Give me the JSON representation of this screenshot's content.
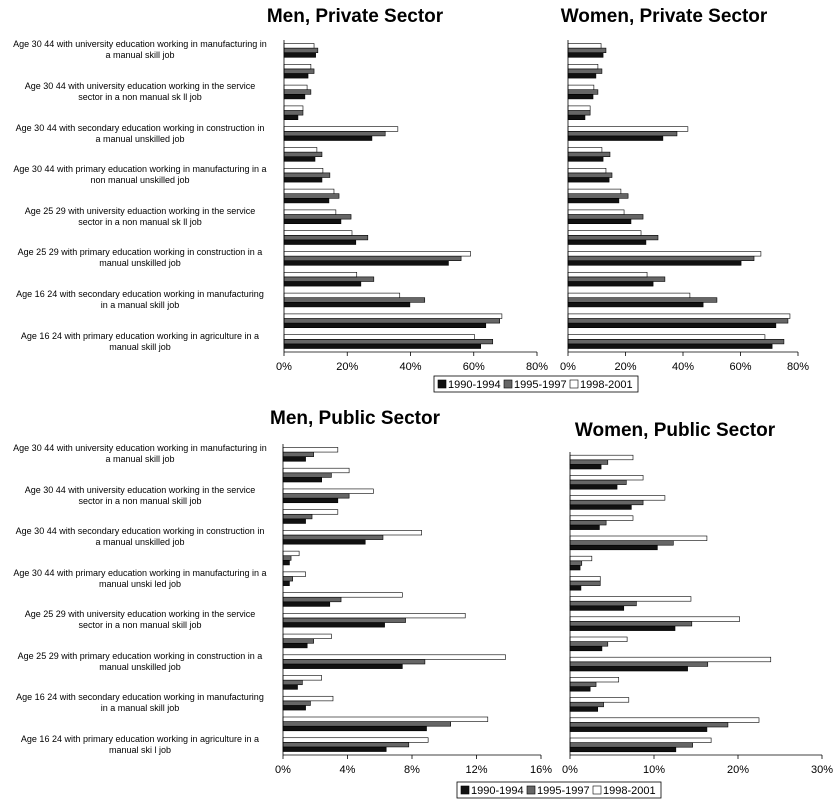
{
  "chart_data": [
    {
      "type": "bar",
      "title": "Men, Private Sector",
      "categories": [
        "Age 30 44 with university education working in manufacturing in\na manual skill job",
        null,
        "Age 30 44 with university education working in the service\nsector in a non manual sk ll job",
        null,
        "Age 30 44 with secondary education working in construction in\na manual unskilled job",
        null,
        "Age 30 44 with primary education working in manufacturing in a\nnon manual unskilled job",
        null,
        "Age 25 29 with university eduaction working in the service\nsector in a non manual sk ll job",
        null,
        "Age 25 29  with primary education working in construction in a\nmanual unskilled job",
        null,
        "Age 16 24 with secondary education working in manufacturing\nin a manual skill job",
        null,
        "Age 16 24 with primary education working in agriculture in a\nmanual skill job"
      ],
      "series": [
        {
          "name": "1990-1994",
          "color": "#111111",
          "values": [
            10,
            7.6,
            6.6,
            4.4,
            27.8,
            9.8,
            12,
            14.2,
            18,
            22.7,
            52,
            24.3,
            39.8,
            63.8,
            62.2
          ]
        },
        {
          "name": "1995-1997",
          "color": "#666666",
          "values": [
            10.7,
            9.5,
            8.5,
            6,
            32,
            12,
            14.5,
            17.4,
            21.2,
            26.5,
            56,
            28.4,
            44.5,
            68.2,
            66
          ]
        },
        {
          "name": "1998-2001",
          "color": "#ffffff",
          "values": [
            9.5,
            8.5,
            7.3,
            6,
            36,
            10.4,
            12.3,
            15.8,
            16.4,
            21.5,
            59,
            23,
            36.6,
            68.9,
            60.3
          ]
        }
      ],
      "xlim": [
        0,
        80
      ],
      "xticks": [
        {
          "value": 0,
          "label": "0%"
        },
        {
          "value": 20,
          "label": "20%"
        },
        {
          "value": 40,
          "label": "40%"
        },
        {
          "value": 60,
          "label": "60%"
        },
        {
          "value": 80,
          "label": "80%"
        }
      ],
      "legend": "bottom"
    },
    {
      "type": "bar",
      "title": "Women, Private Sector",
      "categories": [
        null,
        null,
        null,
        null,
        null,
        null,
        null,
        null,
        null,
        null,
        null,
        null,
        null,
        null,
        null
      ],
      "series": [
        {
          "name": "1990-1994",
          "color": "#111111",
          "values": [
            12.2,
            9.7,
            8.7,
            5.9,
            33,
            12.2,
            14.3,
            17.7,
            21.9,
            27.1,
            60.2,
            29.6,
            47,
            72.3,
            71
          ]
        },
        {
          "name": "1995-1997",
          "color": "#666666",
          "values": [
            13.2,
            11.8,
            10.4,
            7.7,
            37.9,
            14.6,
            15.3,
            20.9,
            26.1,
            31.3,
            64.7,
            33.7,
            51.8,
            76.5,
            75.1
          ]
        },
        {
          "name": "1998-2001",
          "color": "#ffffff",
          "values": [
            11.5,
            10.4,
            9,
            7.7,
            41.7,
            11.8,
            13.2,
            18.4,
            19.5,
            25.4,
            67.1,
            27.5,
            42.4,
            77.2,
            68.5
          ]
        }
      ],
      "xlim": [
        0,
        80
      ],
      "xticks": [
        {
          "value": 0,
          "label": "0%"
        },
        {
          "value": 20,
          "label": "20%"
        },
        {
          "value": 40,
          "label": "40%"
        },
        {
          "value": 60,
          "label": "60%"
        },
        {
          "value": 80,
          "label": "80%"
        }
      ]
    },
    {
      "type": "bar",
      "title": "Men, Public Sector",
      "categories": [
        "Age 30 44 with university education working in manufacturing in\na manual skill job",
        null,
        "Age 30 44 with university education working in the service\nsector in a non manual skill job",
        null,
        "Age 30 44 with secondary education working in construction in\na manual unskilled job",
        null,
        "Age 30 44 with primary education working in manufacturing in a\nmanual unski led job",
        null,
        "Age 25 29 with university education working in the service\nsector in a non manual skill job",
        null,
        "Age 25 29  with primary education working in construction in a\nmanual unskilled job",
        null,
        "Age 16 24 with secondary education working in manufacturing\nin a manual skill job",
        null,
        "Age 16 24 with primary education working in agriculture in a\nmanual ski l job"
      ],
      "series": [
        {
          "name": "1990-1994",
          "color": "#111111",
          "values": [
            1.4,
            2.4,
            3.4,
            1.4,
            5.1,
            0.4,
            0.4,
            2.9,
            6.3,
            1.5,
            7.4,
            0.9,
            1.4,
            8.9,
            6.4
          ]
        },
        {
          "name": "1995-1997",
          "color": "#666666",
          "values": [
            1.9,
            3,
            4.1,
            1.8,
            6.2,
            0.5,
            0.6,
            3.6,
            7.6,
            1.9,
            8.8,
            1.2,
            1.7,
            10.4,
            7.8
          ]
        },
        {
          "name": "1998-2001",
          "color": "#ffffff",
          "values": [
            3.4,
            4.1,
            5.6,
            3.4,
            8.6,
            1,
            1.4,
            7.4,
            11.3,
            3,
            13.8,
            2.4,
            3.1,
            12.7,
            9
          ]
        }
      ],
      "xlim": [
        0,
        16
      ],
      "xticks": [
        {
          "value": 0,
          "label": "0%"
        },
        {
          "value": 4,
          "label": "4%"
        },
        {
          "value": 8,
          "label": "8%"
        },
        {
          "value": 12,
          "label": "12%"
        },
        {
          "value": 16,
          "label": "16%"
        }
      ],
      "legend": "bottom"
    },
    {
      "type": "bar",
      "title": "Women, Public Sector",
      "categories": [
        null,
        null,
        null,
        null,
        null,
        null,
        null,
        null,
        null,
        null,
        null,
        null,
        null,
        null,
        null
      ],
      "series": [
        {
          "name": "1990-1994",
          "color": "#111111",
          "values": [
            3.7,
            5.6,
            7.3,
            3.5,
            10.4,
            1.2,
            1.3,
            6.4,
            12.5,
            3.8,
            14,
            2.4,
            3.3,
            16.3,
            12.6
          ]
        },
        {
          "name": "1995-1997",
          "color": "#666666",
          "values": [
            4.5,
            6.7,
            8.7,
            4.3,
            12.3,
            1.4,
            3.6,
            7.9,
            14.5,
            4.5,
            16.4,
            3.1,
            4,
            18.8,
            14.6
          ]
        },
        {
          "name": "1998-2001",
          "color": "#ffffff",
          "values": [
            7.5,
            8.7,
            11.3,
            7.5,
            16.3,
            2.6,
            3.6,
            14.4,
            20.2,
            6.8,
            23.9,
            5.8,
            7,
            22.5,
            16.8
          ]
        }
      ],
      "xlim": [
        0,
        30
      ],
      "xticks": [
        {
          "value": 0,
          "label": "0%"
        },
        {
          "value": 10,
          "label": "10%"
        },
        {
          "value": 20,
          "label": "20%"
        },
        {
          "value": 30,
          "label": "30%"
        }
      ]
    }
  ]
}
